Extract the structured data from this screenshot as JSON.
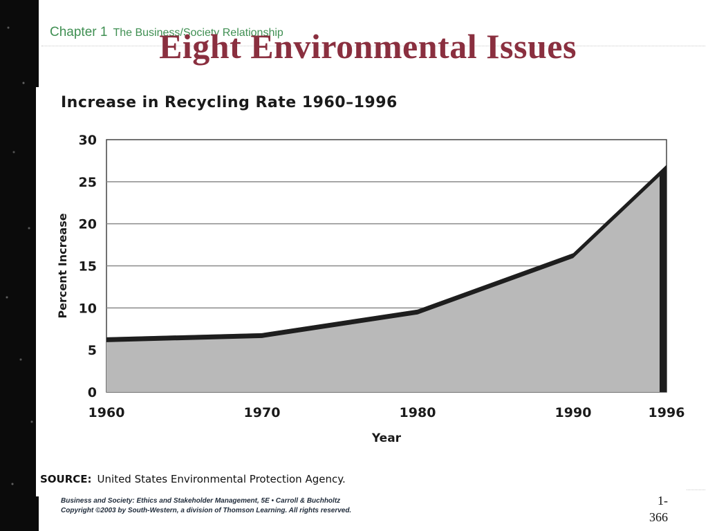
{
  "slide": {
    "chapter_label": "Chapter 1",
    "chapter_subtitle": "The Business/Society Relationship",
    "title": "Eight Environmental Issues",
    "footer_line1": "Business and Society: Ethics and Stakeholder Management, 5E • Carroll & Buchholtz",
    "footer_line2": "Copyright ©2003 by South-Western, a division of Thomson Learning.  All rights reserved.",
    "page_line1": "1-",
    "page_line2": "366"
  },
  "chart_data": {
    "type": "area",
    "title": "Increase in Recycling Rate 1960–1996",
    "xlabel": "Year",
    "ylabel": "Percent Increase",
    "x": [
      1960,
      1970,
      1980,
      1990,
      1996
    ],
    "values": [
      6.5,
      7,
      9.8,
      16.5,
      27
    ],
    "xticks": [
      "1960",
      "1970",
      "1980",
      "1990",
      "1996"
    ],
    "yticks": [
      "0",
      "5",
      "10",
      "15",
      "20",
      "25",
      "30"
    ],
    "ylim": [
      0,
      30
    ],
    "grid": true,
    "source_label": "SOURCE:",
    "source_text": "United States Environmental Protection Agency.",
    "colors": {
      "fill": "#b9b9b9",
      "edge": "#1e1e1e",
      "grid": "#8a8a8a"
    }
  }
}
